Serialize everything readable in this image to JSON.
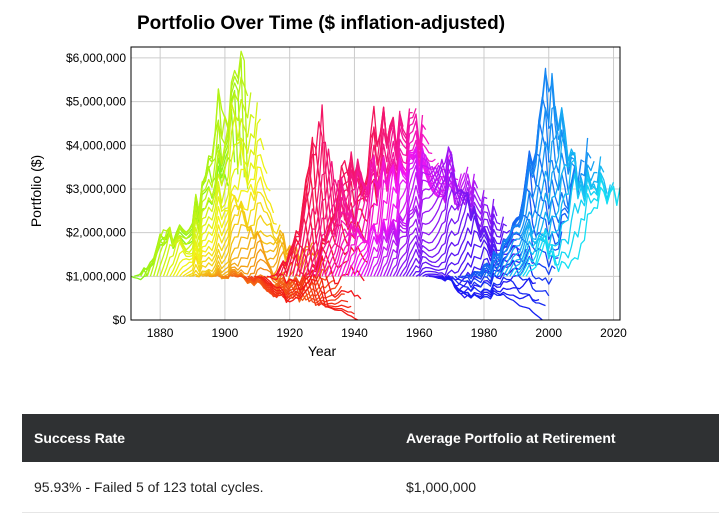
{
  "chart_data": {
    "type": "line",
    "title": "Portfolio Over Time ($ inflation-adjusted)",
    "xlabel": "Year",
    "ylabel": "Portfolio ($)",
    "xlim": [
      1871,
      2022
    ],
    "ylim": [
      0,
      6250000
    ],
    "x_ticks": [
      1880,
      1900,
      1920,
      1940,
      1960,
      1980,
      2000,
      2020
    ],
    "x_tick_labels": [
      "1880",
      "1900",
      "1920",
      "1940",
      "1960",
      "1980",
      "2000",
      "2020"
    ],
    "y_ticks": [
      0,
      1000000,
      2000000,
      3000000,
      4000000,
      5000000,
      6000000
    ],
    "y_tick_labels": [
      "$0",
      "$1,000,000",
      "$2,000,000",
      "$3,000,000",
      "$4,000,000",
      "$5,000,000",
      "$6,000,000"
    ],
    "grid": true,
    "legend": "none",
    "cycle_length_years": 30,
    "start_year_first": 1871,
    "start_year_last": 1993,
    "series_count": 123,
    "initial_value": 1000000,
    "color_scheme": "rainbow hue by start year (green → orange → red → magenta → purple → blue → teal)",
    "representative_series": [
      {
        "start": 1871,
        "x": [
          1871,
          1875,
          1880,
          1885,
          1890,
          1895,
          1900,
          1901
        ],
        "y": [
          1000000,
          950000,
          1900000,
          1800000,
          2000000,
          2600000,
          3600000,
          3300000
        ]
      },
      {
        "start": 1877,
        "x": [
          1877,
          1881,
          1885,
          1890,
          1895,
          1899,
          1901,
          1906
        ],
        "y": [
          1000000,
          2100000,
          1900000,
          2400000,
          3300000,
          5300000,
          4700000,
          6000000
        ]
      },
      {
        "start": 1890,
        "x": [
          1890,
          1895,
          1900,
          1906,
          1910,
          1915,
          1919
        ],
        "y": [
          1000000,
          1100000,
          1500000,
          2500000,
          1800000,
          2100000,
          1300000
        ]
      },
      {
        "start": 1900,
        "x": [
          1900,
          1905,
          1910,
          1915,
          1920,
          1925,
          1929
        ],
        "y": [
          1000000,
          1000000,
          800000,
          900000,
          500000,
          1100000,
          1700000
        ]
      },
      {
        "start": 1912,
        "x": [
          1912,
          1916,
          1920,
          1925,
          1929,
          1932,
          1936,
          1941
        ],
        "y": [
          1000000,
          800000,
          400000,
          600000,
          1100000,
          300000,
          200000,
          0
        ]
      },
      {
        "start": 1921,
        "x": [
          1921,
          1926,
          1929,
          1932,
          1937,
          1942,
          1946,
          1950
        ],
        "y": [
          1000000,
          2800000,
          4800000,
          2000000,
          3500000,
          2900000,
          4500000,
          4400000
        ]
      },
      {
        "start": 1932,
        "x": [
          1932,
          1937,
          1942,
          1945,
          1950,
          1955,
          1961
        ],
        "y": [
          1000000,
          2000000,
          1900000,
          3500000,
          3200000,
          3600000,
          4400000
        ]
      },
      {
        "start": 1950,
        "x": [
          1950,
          1955,
          1960,
          1965,
          1968,
          1974,
          1979
        ],
        "y": [
          1000000,
          1900000,
          2400000,
          3300000,
          4000000,
          2600000,
          2900000
        ]
      },
      {
        "start": 1966,
        "x": [
          1966,
          1970,
          1974,
          1978,
          1982,
          1988,
          1995
        ],
        "y": [
          1000000,
          900000,
          500000,
          600000,
          700000,
          900000,
          1400000
        ]
      },
      {
        "start": 1969,
        "x": [
          1969,
          1974,
          1980,
          1985,
          1990,
          1995,
          1998
        ],
        "y": [
          1000000,
          600000,
          500000,
          600000,
          400000,
          200000,
          0
        ]
      },
      {
        "start": 1982,
        "x": [
          1982,
          1987,
          1992,
          1996,
          2000,
          2003,
          2008,
          2011
        ],
        "y": [
          1000000,
          1800000,
          2500000,
          3900000,
          5800000,
          4100000,
          3200000,
          4000000
        ]
      },
      {
        "start": 1993,
        "x": [
          1993,
          1997,
          2000,
          2003,
          2008,
          2013,
          2018,
          2022
        ],
        "y": [
          1000000,
          1400000,
          1900000,
          1200000,
          1300000,
          2500000,
          3000000,
          2800000
        ]
      }
    ]
  },
  "summary": {
    "headers": [
      "Success Rate",
      "Average Portfolio at Retirement"
    ],
    "values": [
      "95.93% - Failed 5 of 123 total cycles.",
      "$1,000,000"
    ]
  },
  "colors": {
    "table_header_bg": "#2f3133",
    "table_header_text": "#ffffff",
    "grid": "#cccccc"
  }
}
